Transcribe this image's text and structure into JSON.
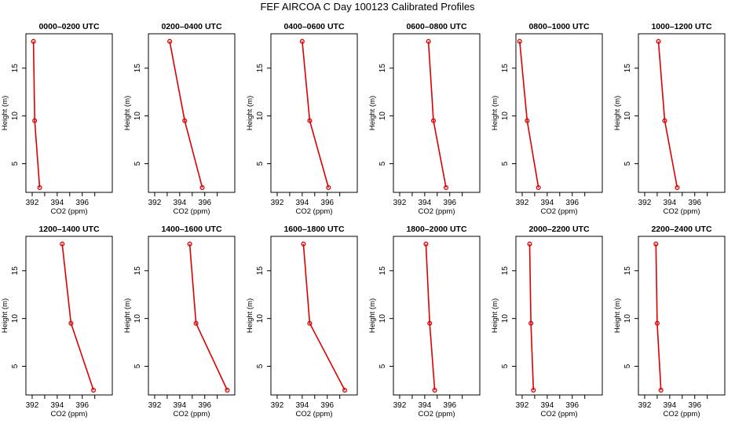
{
  "title": "FEF AIRCOA C  Day 100123  Calibrated Profiles",
  "chart_data": {
    "type": "line",
    "title": "FEF AIRCOA C  Day 100123  Calibrated Profiles",
    "xlabel": "CO2 (ppm)",
    "ylabel": "Height (m)",
    "xlim": [
      391.5,
      398.4
    ],
    "ylim": [
      2.0,
      18.6
    ],
    "xticks": [
      "392",
      "394",
      "396"
    ],
    "yticks": [
      "5",
      "10",
      "15"
    ],
    "xtick_values": [
      392,
      394,
      396
    ],
    "ytick_values": [
      5,
      10,
      15
    ],
    "series_color": "#dd0000",
    "heights": [
      17.8,
      9.5,
      2.5
    ],
    "panels": [
      {
        "title": "0000–0200 UTC",
        "values": [
          392.1,
          392.2,
          392.6
        ]
      },
      {
        "title": "0200–0400 UTC",
        "values": [
          393.2,
          394.4,
          395.8
        ]
      },
      {
        "title": "0400–0600 UTC",
        "values": [
          394.0,
          394.6,
          396.1
        ]
      },
      {
        "title": "0600–0800 UTC",
        "values": [
          394.3,
          394.7,
          395.7
        ]
      },
      {
        "title": "0800–1000 UTC",
        "values": [
          391.8,
          392.4,
          393.3
        ]
      },
      {
        "title": "1000–1200 UTC",
        "values": [
          393.1,
          393.6,
          394.6
        ]
      },
      {
        "title": "1200–1400 UTC",
        "values": [
          394.4,
          395.1,
          396.9
        ]
      },
      {
        "title": "1400–1600 UTC",
        "values": [
          394.8,
          395.3,
          397.8
        ]
      },
      {
        "title": "1600–1800 UTC",
        "values": [
          394.1,
          394.6,
          397.4
        ]
      },
      {
        "title": "1800–2000 UTC",
        "values": [
          394.1,
          394.4,
          394.8
        ]
      },
      {
        "title": "2000–2200 UTC",
        "values": [
          392.6,
          392.7,
          392.9
        ]
      },
      {
        "title": "2200–2400 UTC",
        "values": [
          392.9,
          393.0,
          393.3
        ]
      }
    ]
  }
}
